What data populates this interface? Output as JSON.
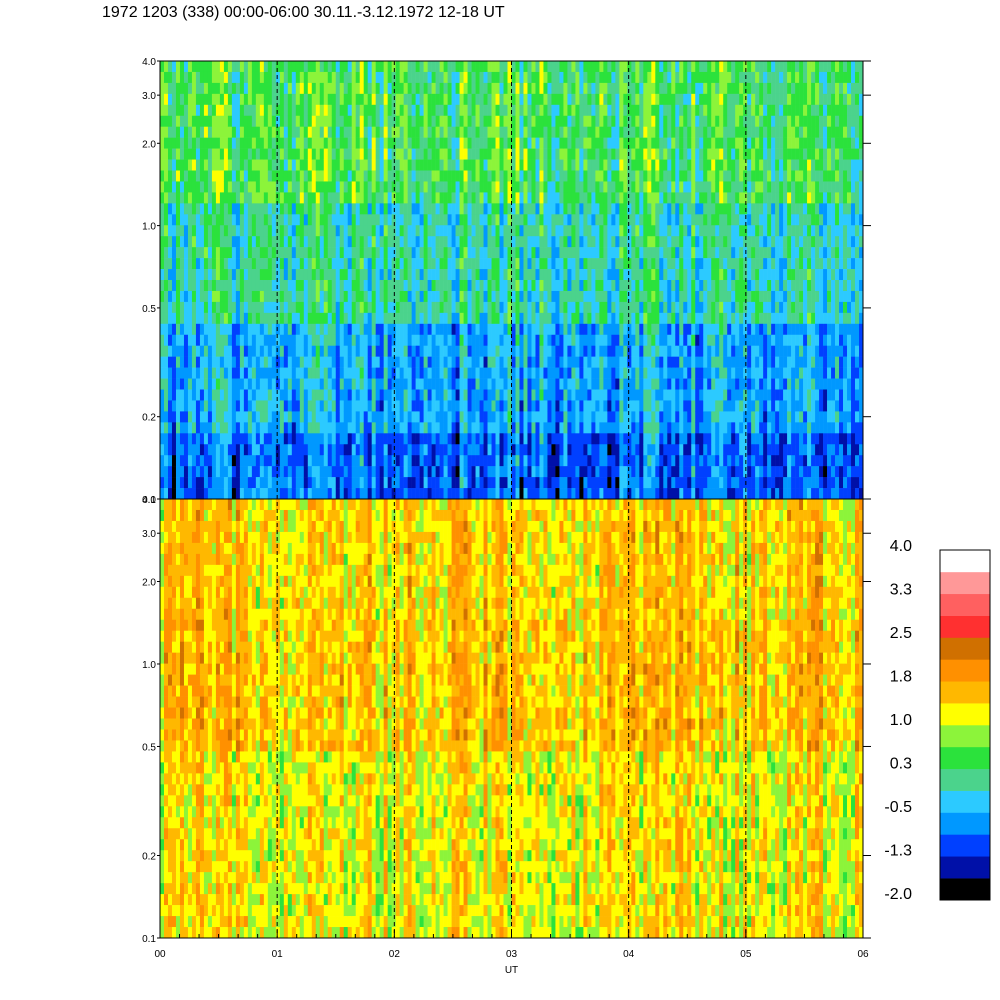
{
  "title": "1972 1203 (338) 00:00-06:00 30.11.-3.12.1972  12-18 UT",
  "chart_data": {
    "type": "heatmap",
    "title": "1972 1203 (338) 00:00-06:00 30.11.-3.12.1972  12-18 UT",
    "xlabel": "UT",
    "x_tick_labels": [
      "00",
      "01",
      "02",
      "03",
      "04",
      "05",
      "06"
    ],
    "xlim": [
      0,
      6
    ],
    "y_scale": "log",
    "ylim": [
      0.1,
      4.0
    ],
    "y_tick_labels": [
      "0.1",
      "0.2",
      "0.5",
      "1.0",
      "2.0",
      "3.0",
      "4.0"
    ],
    "y_tick_values": [
      0.1,
      0.2,
      0.5,
      1.0,
      2.0,
      3.0,
      4.0
    ],
    "grid": "vertical dashed lines at each hour",
    "panels": [
      {
        "name": "top",
        "dominant_levels_by_frequency": [
          {
            "freq_range": [
              0.1,
              0.18
            ],
            "level": -0.9
          },
          {
            "freq_range": [
              0.18,
              0.45
            ],
            "level": -0.5
          },
          {
            "freq_range": [
              0.45,
              1.2
            ],
            "level": 0.0
          },
          {
            "freq_range": [
              1.2,
              4.0
            ],
            "level": 0.4
          }
        ]
      },
      {
        "name": "bottom",
        "dominant_levels_by_frequency": [
          {
            "freq_range": [
              0.1,
              0.5
            ],
            "level": 1.2
          },
          {
            "freq_range": [
              0.5,
              1.5
            ],
            "level": 1.5
          },
          {
            "freq_range": [
              1.5,
              4.0
            ],
            "level": 1.4
          }
        ]
      }
    ],
    "colorbar": {
      "tick_labels": [
        "4.0",
        "3.3",
        "2.5",
        "1.8",
        "1.0",
        "0.3",
        "-0.5",
        "-1.3",
        "-2.0"
      ],
      "range": [
        -2.0,
        4.0
      ],
      "colors": [
        "#000000",
        "#0010a8",
        "#0040ff",
        "#0098ff",
        "#2ccaff",
        "#4bd38c",
        "#2be23c",
        "#8cf43a",
        "#ffff00",
        "#ffb800",
        "#ff9000",
        "#d07000",
        "#ff3030",
        "#ff6060",
        "#ff9898",
        "#ffffff"
      ]
    }
  }
}
